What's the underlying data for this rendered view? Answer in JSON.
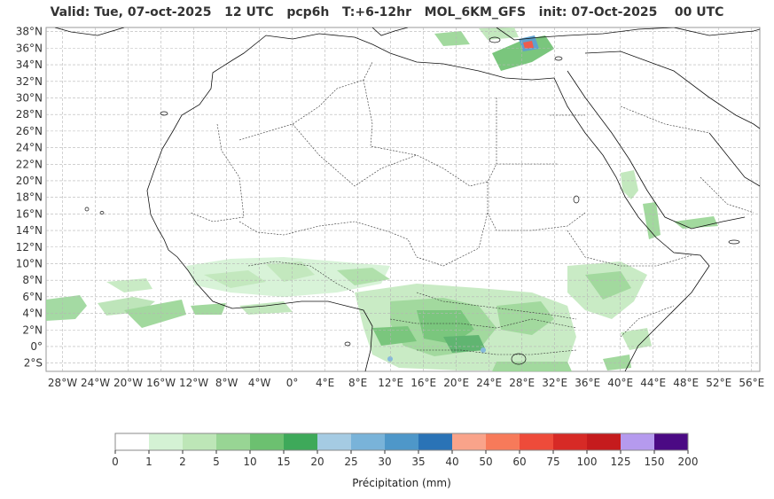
{
  "title": "Valid: Tue, 07-oct-2025   12 UTC   pcp6h   T:+6-12hr   MOL_6KM_GFS   init: 07-Oct-2025    00 UTC",
  "map": {
    "lat_ticks": [
      "38°N",
      "36°N",
      "34°N",
      "32°N",
      "30°N",
      "28°N",
      "26°N",
      "24°N",
      "22°N",
      "20°N",
      "18°N",
      "16°N",
      "14°N",
      "12°N",
      "10°N",
      "8°N",
      "6°N",
      "4°N",
      "2°N",
      "0°",
      "2°S"
    ],
    "lon_ticks": [
      "28°W",
      "24°W",
      "20°W",
      "16°W",
      "12°W",
      "8°W",
      "4°W",
      "0°",
      "4°E",
      "8°E",
      "12°E",
      "16°E",
      "20°E",
      "24°E",
      "28°E",
      "32°E",
      "36°E",
      "40°E",
      "44°E",
      "48°E",
      "52°E",
      "56°E"
    ],
    "extent": {
      "lon": [
        -30,
        57
      ],
      "lat": [
        -3,
        38.5
      ]
    },
    "grid": true
  },
  "colorbar": {
    "label": "Précipitation (mm)",
    "ticks": [
      "0",
      "1",
      "2",
      "5",
      "10",
      "15",
      "20",
      "25",
      "30",
      "35",
      "40",
      "50",
      "60",
      "75",
      "100",
      "125",
      "150",
      "200"
    ],
    "colors": [
      "#ffffff",
      "#d4f2d4",
      "#bde6b7",
      "#98d594",
      "#6cc070",
      "#3ea95a",
      "#a5cbe3",
      "#79b3d9",
      "#4e97c9",
      "#2a73b6",
      "#f9a38a",
      "#f77a5a",
      "#ee4b3a",
      "#d72a26",
      "#c51b1d",
      "#b59aee",
      "#4b0a84"
    ]
  }
}
